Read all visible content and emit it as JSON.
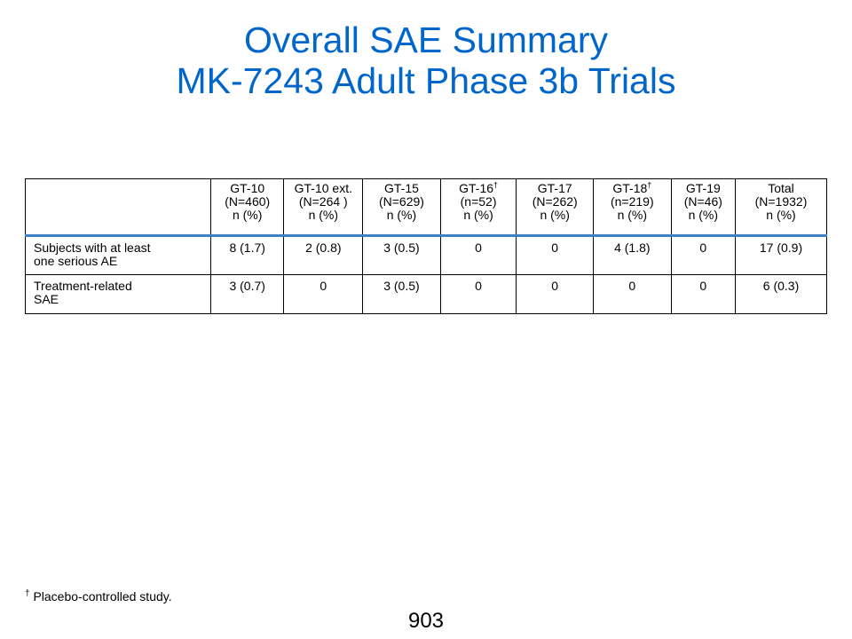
{
  "title": {
    "line1": "Overall SAE Summary",
    "line2": "MK-7243 Adult Phase 3b Trials"
  },
  "table": {
    "columns": [
      {
        "name": "GT-10",
        "dagger": "",
        "n": "(N=460)",
        "unit": "n (%)"
      },
      {
        "name": "GT-10 ext.",
        "dagger": "",
        "n": "(N=264 )",
        "unit": "n (%)"
      },
      {
        "name": "GT-15",
        "dagger": "",
        "n": "(N=629)",
        "unit": "n (%)"
      },
      {
        "name": "GT-16",
        "dagger": "†",
        "n": "(n=52)",
        "unit": "n (%)"
      },
      {
        "name": "GT-17",
        "dagger": "",
        "n": "(N=262)",
        "unit": "n (%)"
      },
      {
        "name": "GT-18",
        "dagger": "†",
        "n": "(n=219)",
        "unit": "n (%)"
      },
      {
        "name": "GT-19",
        "dagger": "",
        "n": "(N=46)",
        "unit": "n (%)"
      },
      {
        "name": "Total",
        "dagger": "",
        "n": "(N=1932)",
        "unit": "n (%)"
      }
    ],
    "rows": [
      {
        "label_line1": "Subjects with at least",
        "label_line2": "one serious AE",
        "values": [
          "8 (1.7)",
          "2 (0.8)",
          "3 (0.5)",
          "0",
          "0",
          "4 (1.8)",
          "0",
          "17 (0.9)"
        ]
      },
      {
        "label_line1": "Treatment-related",
        "label_line2": "SAE",
        "values": [
          "3 (0.7)",
          "0",
          "3 (0.5)",
          "0",
          "0",
          "0",
          "0",
          "6 (0.3)"
        ]
      }
    ]
  },
  "footnote": {
    "symbol": "†",
    "text": " Placebo-controlled study."
  },
  "page_number": "903",
  "colors": {
    "title": "#0066cc",
    "header_rule": "#3f7fc8"
  }
}
